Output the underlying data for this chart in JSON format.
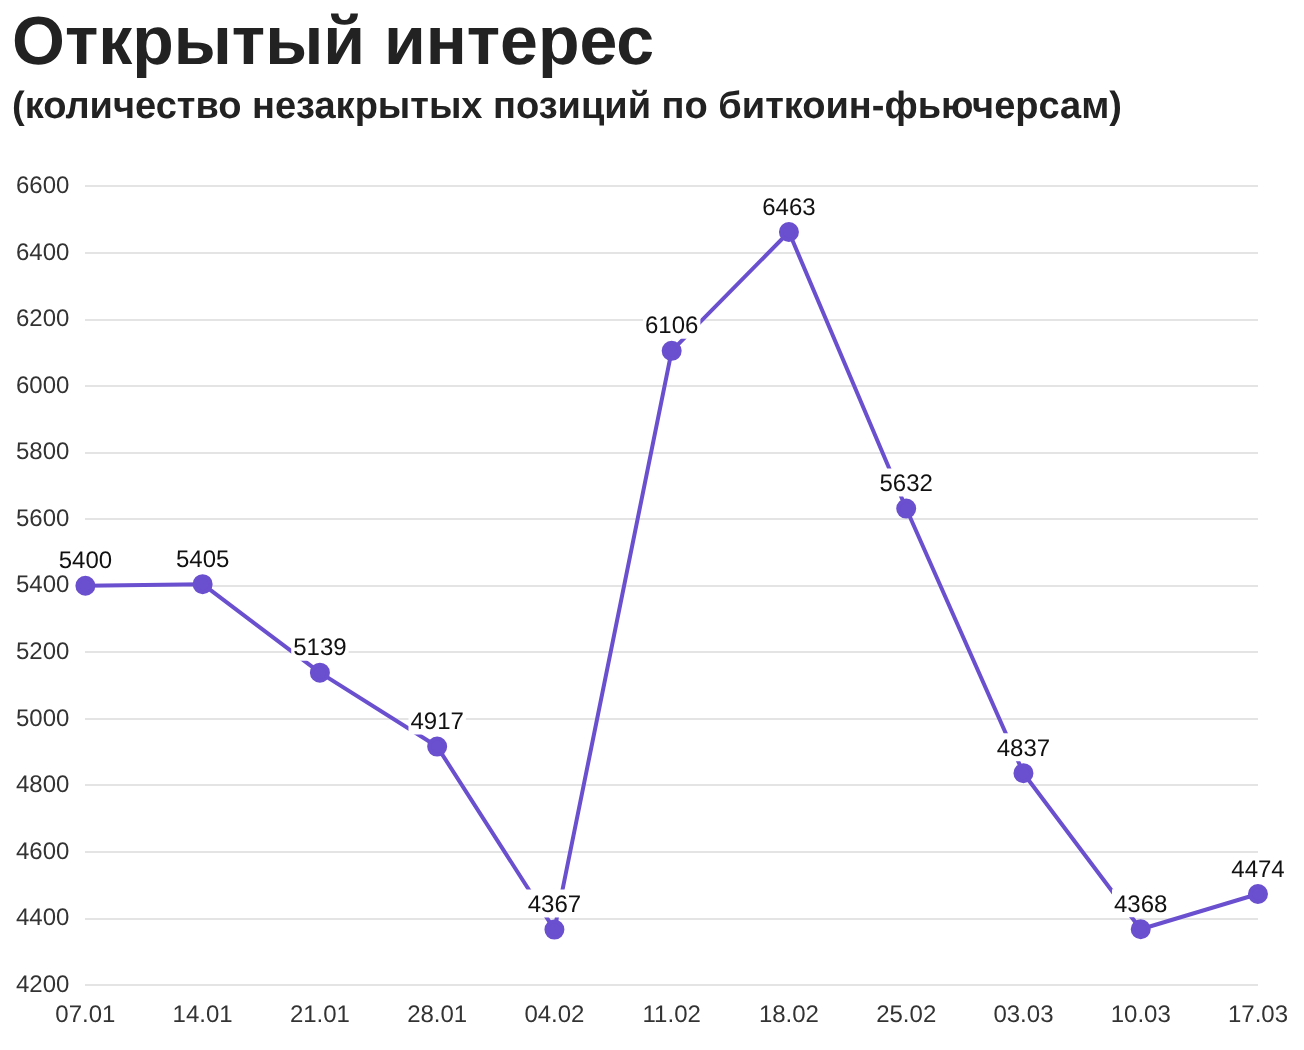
{
  "chart_data": {
    "type": "line",
    "title": "Открытый интерес",
    "subtitle": "(количество незакрытых позиций по биткоин-фьючерсам)",
    "categories": [
      "07.01",
      "14.01",
      "21.01",
      "28.01",
      "04.02",
      "11.02",
      "18.02",
      "25.02",
      "03.03",
      "10.03",
      "17.03"
    ],
    "series": [
      {
        "color": "#6a4fcf",
        "values": [
          5400,
          5405,
          5139,
          4917,
          4367,
          6106,
          6463,
          5632,
          4837,
          4368,
          4474
        ]
      }
    ],
    "ylim": [
      4200,
      6600
    ],
    "yticks": [
      4200,
      4400,
      4600,
      4800,
      5000,
      5200,
      5400,
      5600,
      5800,
      6000,
      6200,
      6400,
      6600
    ],
    "grid": "y",
    "marker": "circle",
    "line_style": "solid",
    "data_labels": true,
    "legend": false
  }
}
